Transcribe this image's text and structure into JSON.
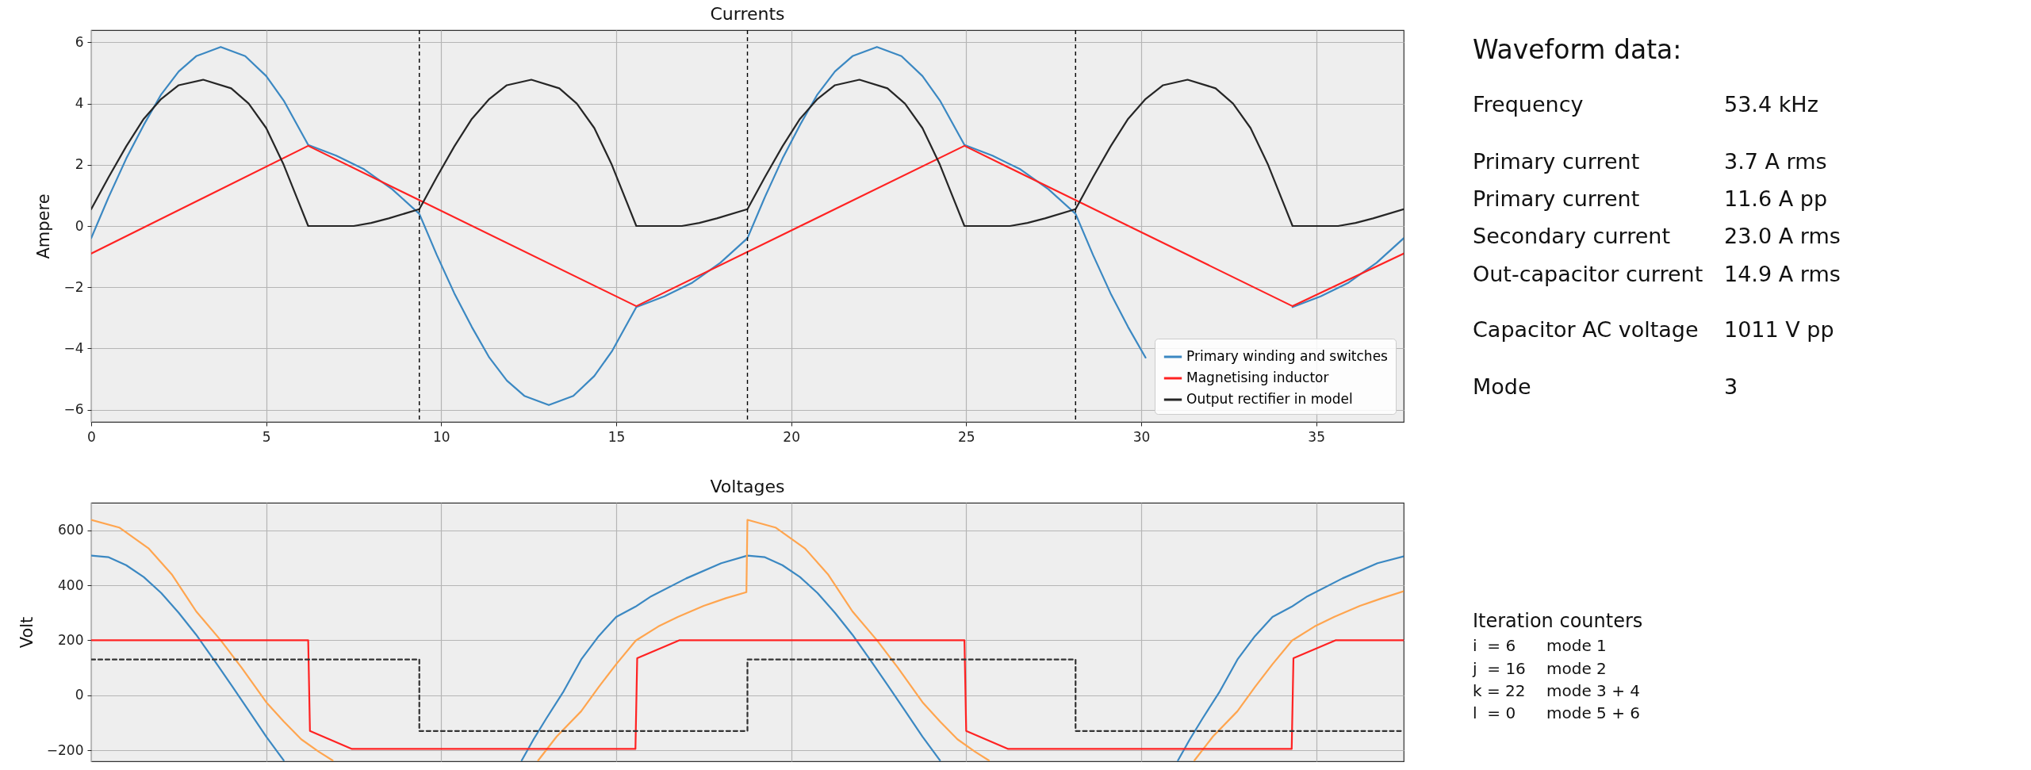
{
  "chart_data": [
    {
      "type": "line",
      "title": "Currents",
      "ylabel": "Ampere",
      "xlim": [
        0,
        37.5
      ],
      "xticks": [
        0,
        5,
        10,
        15,
        20,
        25,
        30,
        35
      ],
      "ylim": [
        -6.4,
        6.4
      ],
      "yticks": [
        -6,
        -4,
        -2,
        0,
        2,
        4,
        6
      ],
      "grid": true,
      "legend": "bottom right",
      "ref_lines": [
        {
          "axis": "x",
          "value": 9.375,
          "color": "#000000",
          "line_style": "dashed"
        },
        {
          "axis": "x",
          "value": 18.75,
          "color": "#000000",
          "line_style": "dashed"
        },
        {
          "axis": "x",
          "value": 28.125,
          "color": "#000000",
          "line_style": "dashed"
        }
      ],
      "series": [
        {
          "name": "Primary winding and switches",
          "color": "#3b88c2",
          "x": [
            0,
            0.5,
            1,
            1.5,
            2,
            2.5,
            3,
            3.7,
            4.4,
            5,
            5.5,
            6.2,
            7,
            7.8,
            8.6,
            9.375,
            9.875,
            10.375,
            10.875,
            11.375,
            11.875,
            12.375,
            13.075,
            13.775,
            14.375,
            14.875,
            15.575,
            16.375,
            17.175,
            17.975,
            18.75,
            19.25,
            19.75,
            20.25,
            20.75,
            21.25,
            21.75,
            22.45,
            23.15,
            23.75,
            24.25,
            24.95,
            25.75,
            26.55,
            27.35,
            28.125,
            28.625,
            29.125,
            29.625,
            30.125,
            30.625,
            31.125,
            31.825,
            32.525,
            33.125,
            33.625,
            34.325,
            35.125,
            35.925,
            36.725,
            37.5
          ],
          "values": [
            -0.4,
            0.95,
            2.2,
            3.3,
            4.3,
            5.05,
            5.55,
            5.85,
            5.55,
            4.9,
            4.1,
            2.65,
            2.3,
            1.85,
            1.2,
            0.4,
            -0.95,
            -2.2,
            -3.3,
            -4.3,
            -5.05,
            -5.55,
            -5.85,
            -5.55,
            -4.9,
            -4.1,
            -2.65,
            -2.3,
            -1.85,
            -1.2,
            -0.4,
            0.95,
            2.2,
            3.3,
            4.3,
            5.05,
            5.55,
            5.85,
            5.55,
            4.9,
            4.1,
            2.65,
            2.3,
            1.85,
            1.2,
            0.4,
            -0.95,
            -2.2,
            -3.3,
            -4.3,
            null,
            null,
            null,
            null,
            null,
            null,
            -2.65,
            -2.3,
            -1.85,
            -1.2,
            -0.4
          ]
        },
        {
          "name": "Magnetising inductor",
          "color": "#ff2222",
          "x": [
            0,
            6.2,
            15.575,
            24.95,
            34.325,
            37.5
          ],
          "values": [
            -0.9,
            2.62,
            -2.62,
            2.62,
            -2.62,
            -0.9
          ]
        },
        {
          "name": "Output rectifier in model",
          "color": "#262626",
          "x": [
            0,
            0.5,
            1,
            1.5,
            2,
            2.5,
            3.2,
            4,
            4.5,
            5,
            5.5,
            6.2,
            7.5,
            8,
            8.5,
            9.375,
            9.875,
            10.375,
            10.875,
            11.375,
            11.875,
            12.575,
            13.375,
            13.875,
            14.375,
            14.875,
            15.575,
            16.875,
            17.375,
            17.875,
            18.75,
            19.25,
            19.75,
            20.25,
            20.75,
            21.25,
            21.95,
            22.75,
            23.25,
            23.75,
            24.25,
            24.95,
            26.25,
            26.75,
            27.25,
            28.125,
            28.625,
            29.125,
            29.625,
            30.125,
            30.625,
            31.325,
            32.125,
            32.625,
            33.125,
            33.625,
            34.325,
            35.625,
            36.125,
            36.625,
            37.5
          ],
          "values": [
            0.55,
            1.6,
            2.6,
            3.5,
            4.15,
            4.6,
            4.78,
            4.5,
            4.0,
            3.2,
            2.0,
            0,
            0,
            0.1,
            0.25,
            0.55,
            1.6,
            2.6,
            3.5,
            4.15,
            4.6,
            4.78,
            4.5,
            4.0,
            3.2,
            2.0,
            0,
            0,
            0.1,
            0.25,
            0.55,
            1.6,
            2.6,
            3.5,
            4.15,
            4.6,
            4.78,
            4.5,
            4.0,
            3.2,
            2.0,
            0,
            0,
            0.1,
            0.25,
            0.55,
            1.6,
            2.6,
            3.5,
            4.15,
            4.6,
            4.78,
            4.5,
            4.0,
            3.2,
            2.0,
            0,
            0,
            0.1,
            0.25,
            0.55
          ]
        }
      ]
    },
    {
      "type": "line",
      "title": "Voltages",
      "ylabel": "Volt",
      "xlim": [
        0,
        37.5
      ],
      "xticks": [
        0,
        5,
        10,
        15,
        20,
        25,
        30,
        35
      ],
      "tick_labels": "y",
      "ylim": [
        -240,
        700
      ],
      "yticks": [
        -200,
        0,
        200,
        400,
        600
      ],
      "grid": true,
      "series": [
        {
          "color": "#3b88c2",
          "x": [
            0,
            0.5,
            1,
            1.5,
            2,
            2.5,
            3,
            3.5,
            4,
            4.5,
            5,
            5.5,
            8.9,
            12.3,
            12.64,
            13,
            13.5,
            14,
            14.5,
            15,
            15.55,
            16,
            17,
            18,
            18.75,
            19.25,
            19.75,
            20.25,
            20.75,
            21.25,
            21.75,
            22.25,
            22.75,
            23.25,
            23.75,
            24.25,
            27.6,
            31.05,
            31.39,
            31.75,
            32.25,
            32.75,
            33.25,
            33.75,
            34.3,
            34.75,
            35.75,
            36.75,
            37.5
          ],
          "values": [
            508,
            502,
            473,
            430,
            372,
            300,
            220,
            130,
            38,
            -56,
            -150,
            -237,
            null,
            -237,
            -160,
            -85,
            15,
            130,
            215,
            285,
            322,
            360,
            425,
            480,
            508,
            502,
            473,
            430,
            372,
            300,
            220,
            130,
            38,
            -56,
            -150,
            -237,
            null,
            -237,
            -160,
            -85,
            15,
            130,
            215,
            285,
            322,
            360,
            425,
            480,
            505
          ]
        },
        {
          "color": "#ffa54f",
          "x": [
            0,
            0.8,
            1.65,
            2.3,
            3,
            3.7,
            4.3,
            5,
            5.5,
            6,
            6.5,
            6.9,
            9.8,
            12.77,
            13.3,
            14,
            14.5,
            15,
            15.56,
            16.2,
            16.76,
            17.5,
            18.13,
            18.72,
            18.75,
            19.55,
            20.4,
            21.05,
            21.75,
            22.45,
            23.05,
            23.75,
            24.25,
            24.75,
            25.25,
            25.65,
            28.6,
            31.52,
            32.05,
            32.75,
            33.25,
            33.75,
            34.31,
            34.95,
            35.51,
            36.25,
            36.88,
            37.5
          ],
          "values": [
            638,
            610,
            533,
            440,
            305,
            200,
            100,
            -25,
            -95,
            -160,
            -205,
            -237,
            null,
            -237,
            -150,
            -58,
            30,
            113,
            199,
            250,
            285,
            325,
            353,
            375,
            638,
            610,
            533,
            440,
            305,
            200,
            100,
            -25,
            -95,
            -160,
            -205,
            -237,
            null,
            -237,
            -150,
            -58,
            30,
            113,
            199,
            250,
            285,
            325,
            353,
            378
          ]
        },
        {
          "color": "#ff2222",
          "x": [
            0,
            6.2,
            6.25,
            7.45,
            15.55,
            15.6,
            16.8,
            24.95,
            25,
            26.2,
            34.3,
            34.35,
            35.55,
            37.5
          ],
          "values": [
            200,
            200,
            -130,
            -195,
            -195,
            135,
            200,
            200,
            -130,
            -195,
            -195,
            135,
            200,
            200
          ]
        },
        {
          "type": "step",
          "line_style": "dashed",
          "color": "#333333",
          "x": [
            0,
            9.375,
            18.75,
            28.125,
            37.5
          ],
          "values": [
            130,
            -130,
            130,
            -130,
            -130
          ]
        }
      ]
    },
    {
      "type": "other",
      "title": "Waveform data:",
      "annotations": [
        "Frequency",
        "53.4 kHz",
        "Primary current",
        "3.7 A rms",
        "Primary current",
        "11.6 A pp",
        "Secondary current",
        "23.0 A rms",
        "Out-capacitor current",
        "14.9 A rms",
        "Capacitor AC voltage",
        "1011 V pp",
        "Mode",
        "3"
      ]
    },
    {
      "type": "other",
      "title": "Iteration counters",
      "annotations": [
        "i  = 6",
        "mode 1",
        "j  = 16",
        "mode 2",
        "k = 22",
        "mode 3 + 4",
        "l  = 0",
        "mode 5 + 6"
      ]
    }
  ]
}
